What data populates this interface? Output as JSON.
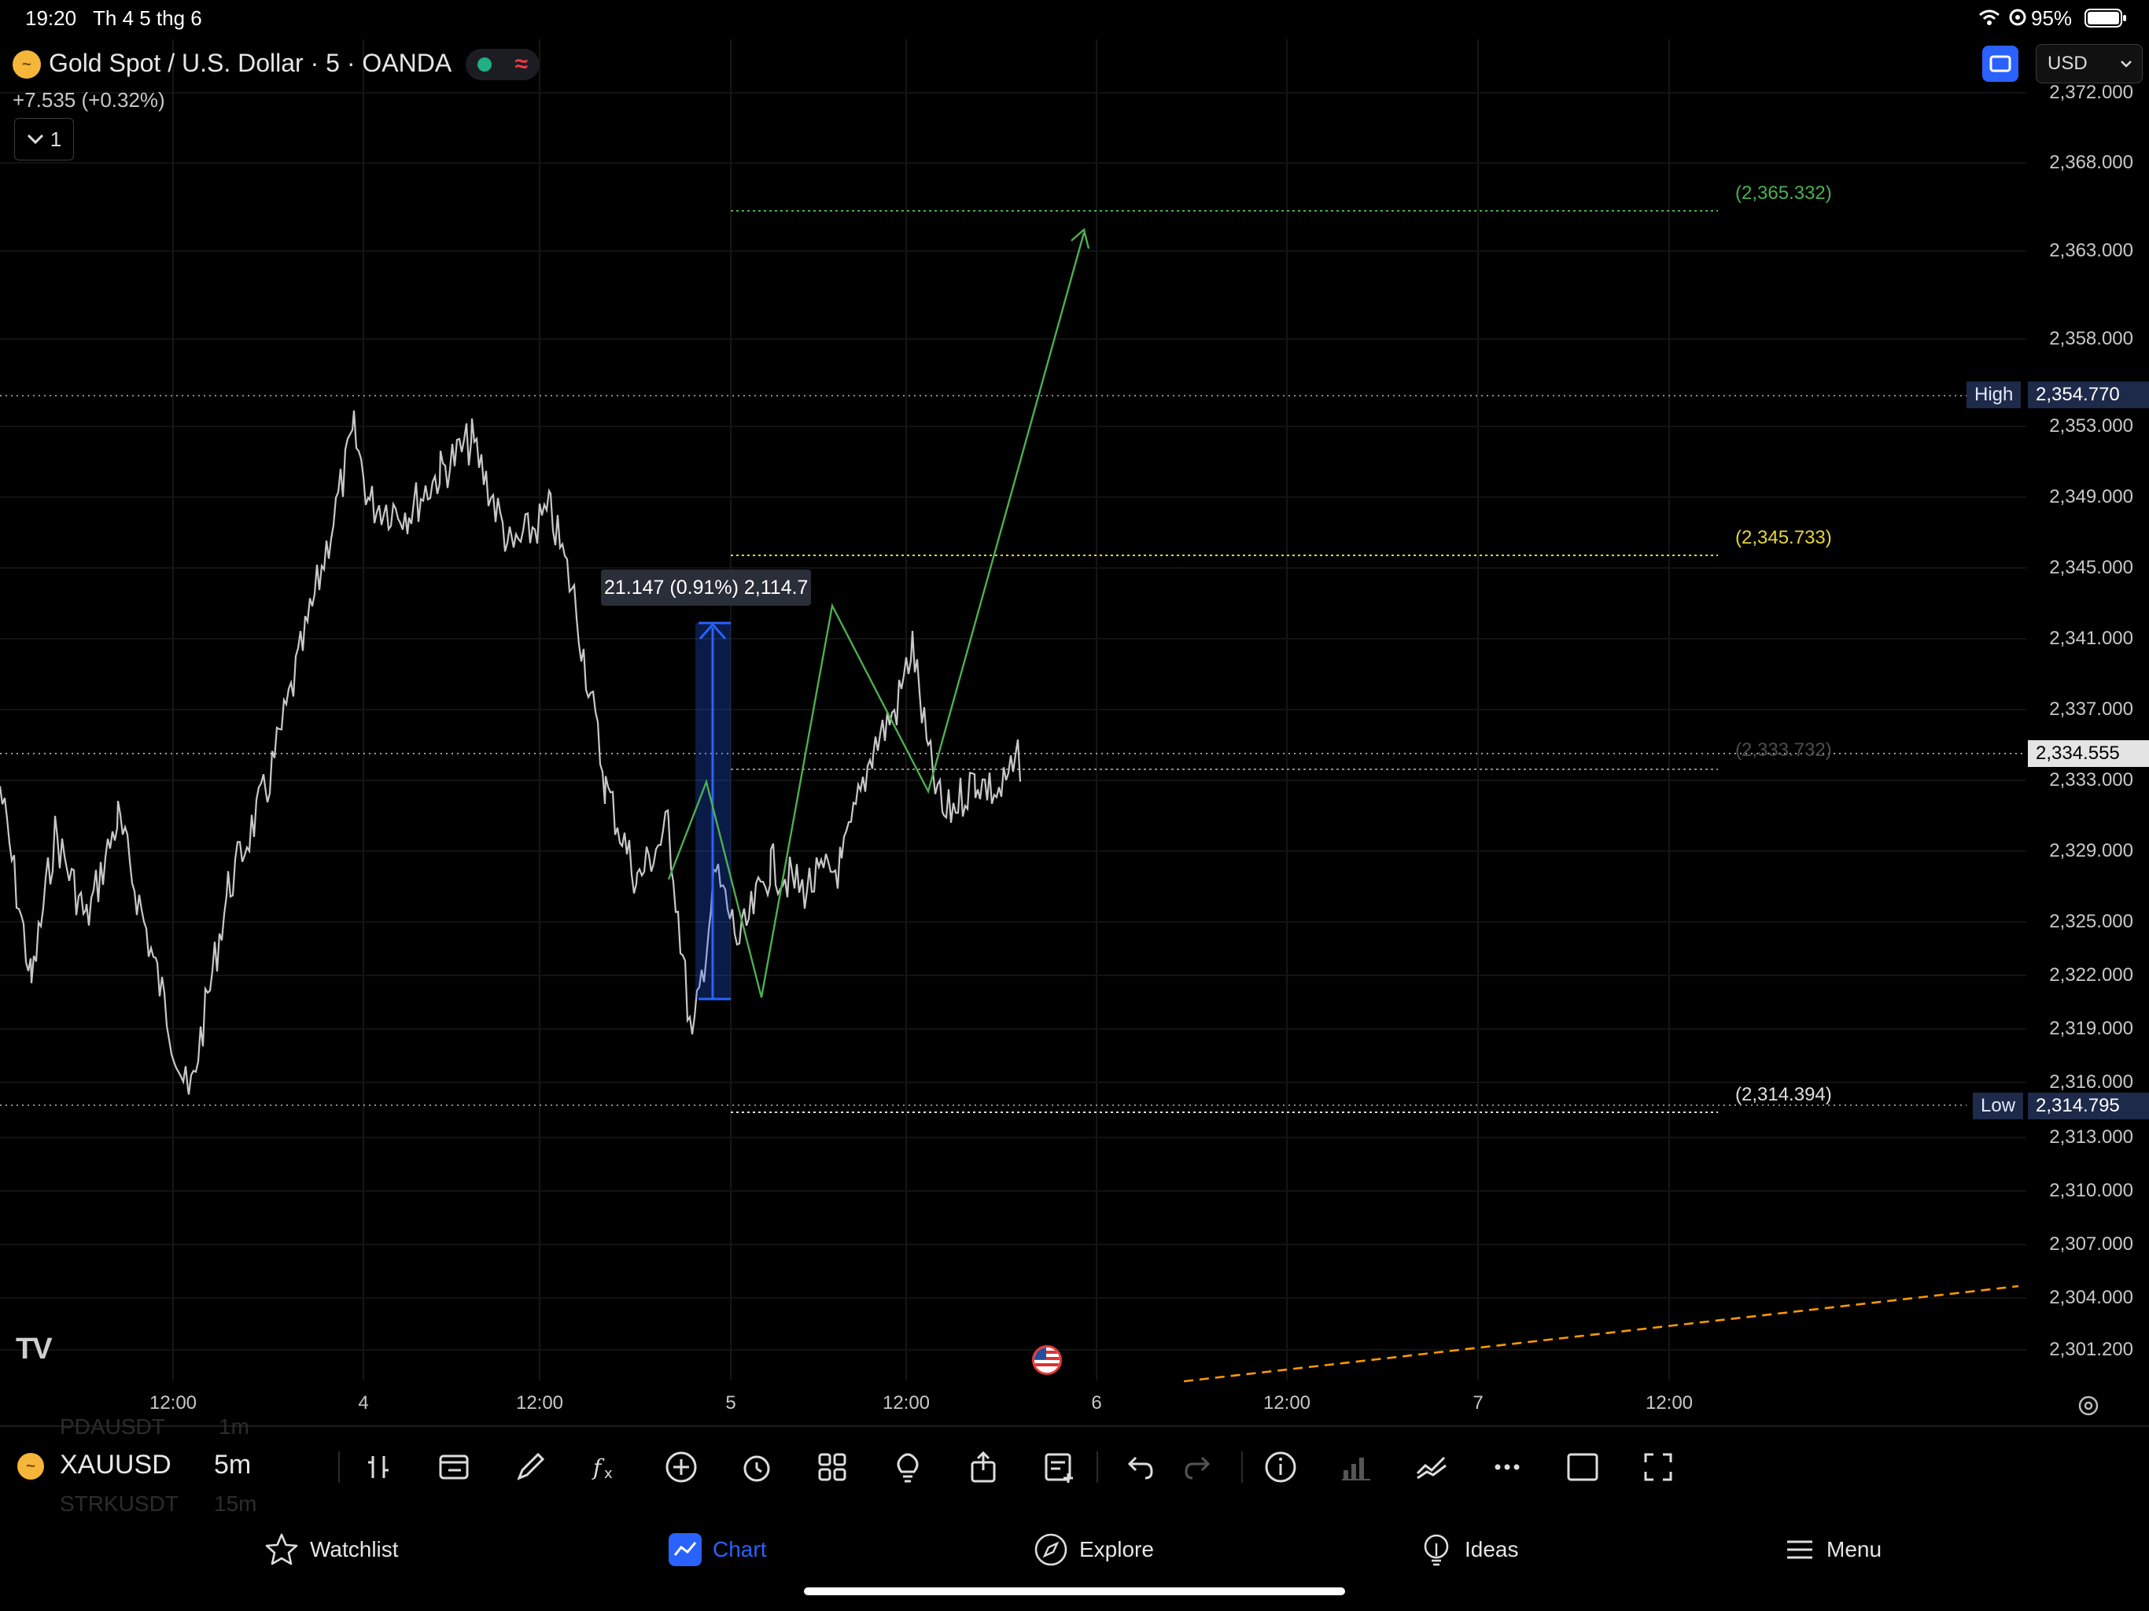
{
  "status_bar": {
    "time": "19:20",
    "date": "Th 4 5 thg 6",
    "battery": "95%"
  },
  "header": {
    "title": "Gold Spot / U.S. Dollar · 5 · OANDA",
    "change": "+7.535 (+0.32%)",
    "indicator_count": "1",
    "currency": "USD"
  },
  "price_axis": {
    "ticks": [
      "2,372.000",
      "2,368.000",
      "2,363.000",
      "2,358.000",
      "2,353.000",
      "2,349.000",
      "2,345.000",
      "2,341.000",
      "2,337.000",
      "2,333.000",
      "2,329.000",
      "2,325.000",
      "2,322.000",
      "2,319.000",
      "2,316.000",
      "2,313.000",
      "2,310.000",
      "2,307.000",
      "2,304.000",
      "2,301.200"
    ],
    "high_label": "High",
    "high_value": "2,354.770",
    "low_label": "Low",
    "low_value": "2,314.795",
    "current_value": "2,334.555"
  },
  "time_axis": {
    "ticks": [
      "12:00",
      "4",
      "12:00",
      "5",
      "12:00",
      "6",
      "12:00",
      "7",
      "12:00"
    ]
  },
  "levels": {
    "target_high": "(2,365.332)",
    "target_mid": "(2,345.733)",
    "entry": "(2,333.732)",
    "stop": "(2,314.394)"
  },
  "measure_tooltip": "21.147 (0.91%) 2,114.7",
  "logo_text": "TV",
  "toolbar": {
    "symbol": "XAUUSD",
    "interval": "5m",
    "ghost_symbol_top": "PDAUSDT",
    "ghost_interval_top": "1m",
    "ghost_symbol_bottom": "STRKUSDT",
    "ghost_interval_bottom": "15m"
  },
  "tabs": {
    "watchlist": "Watchlist",
    "chart": "Chart",
    "explore": "Explore",
    "ideas": "Ideas",
    "menu": "Menu"
  },
  "colors": {
    "accent": "#2962ff",
    "green": "#4caf50",
    "yellow": "#e6d53a",
    "orange": "#ff9800",
    "candle": "#c8c8c8"
  }
}
